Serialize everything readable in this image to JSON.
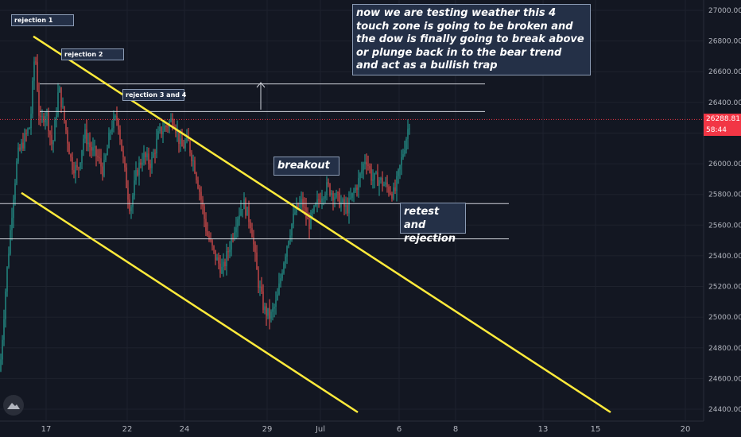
{
  "chart_data": {
    "type": "candlestick",
    "y_axis": {
      "range": [
        24300,
        27080
      ],
      "ticks": [
        27000,
        26800,
        26600,
        26400,
        26200,
        26000,
        25800,
        25600,
        25400,
        25200,
        25000,
        24800,
        24600,
        24400
      ],
      "tick_labels": [
        "27000.00",
        "26800.00",
        "26600.00",
        "26400.00",
        "26200.00",
        "26000.00",
        "25800.00",
        "25600.00",
        "25400.00",
        "25200.00",
        "25000.00",
        "24800.00",
        "24600.00",
        "24400.00"
      ]
    },
    "x_axis": {
      "tick_labels": [
        "17",
        "22",
        "24",
        "29",
        "Jul",
        "6",
        "8",
        "13",
        "15",
        "20"
      ]
    },
    "last_price": "26288.81",
    "countdown": "58:44",
    "price_line_value": 26288.81,
    "horizontal_levels": [
      26520,
      26340,
      25740,
      25510
    ],
    "channel_lines": [
      {
        "name": "upper",
        "from": {
          "date": "Jun 16",
          "value": 26830
        },
        "to": {
          "date": "Jul 15",
          "value": 24380
        }
      },
      {
        "name": "lower",
        "from": {
          "date": "Jun 15",
          "value": 25810
        },
        "to": {
          "date": "Jul 2",
          "value": 24380
        }
      }
    ],
    "annotations": {
      "rejection_1": "rejection 1",
      "rejection_2": "rejection 2",
      "rejection_3_4": "rejection 3 and 4",
      "breakout": "breakout",
      "retest": "retest and rejection",
      "main_note": "now we are testing weather this 4 touch zone is going to be broken and the dow is finally going to break above or plunge back in to the bear trend and act as a bullish trap"
    },
    "colors": {
      "background": "#131722",
      "up": "#26a69a",
      "down": "#ef5350",
      "channel": "#ffeb3b",
      "level": "#d1d4dc",
      "last_price": "#f23645"
    }
  }
}
